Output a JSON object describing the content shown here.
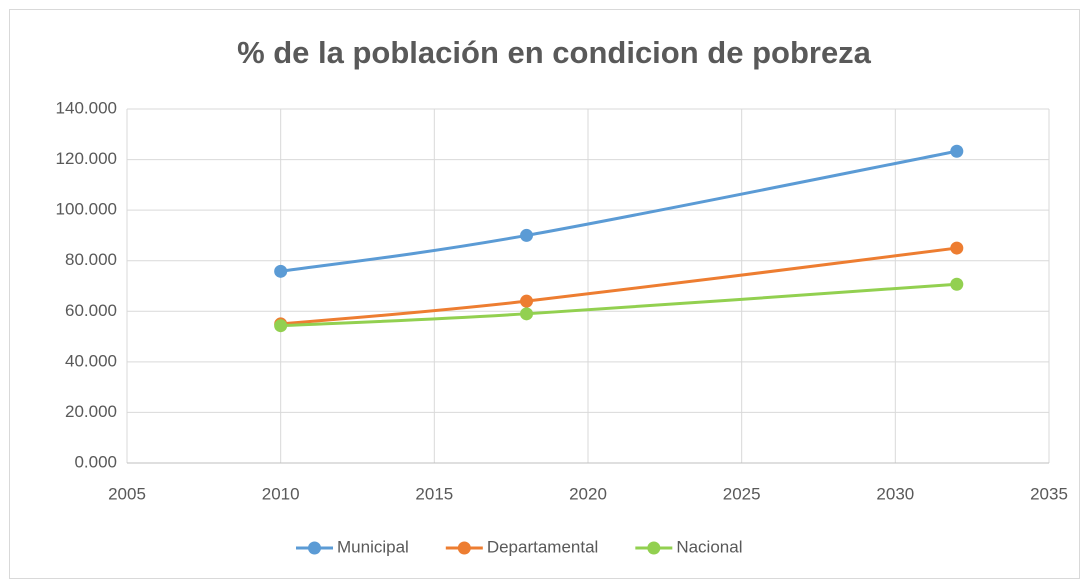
{
  "chart_data": {
    "type": "line",
    "title": "% de la población en condicion de pobreza",
    "x": [
      2010,
      2018,
      2032
    ],
    "series": [
      {
        "name": "Municipal",
        "color": "#5b9bd5",
        "values": [
          75.8,
          90.0,
          123.3
        ]
      },
      {
        "name": "Departamental",
        "color": "#ed7d31",
        "values": [
          55.0,
          64.0,
          85.0
        ]
      },
      {
        "name": "Nacional",
        "color": "#92d050",
        "values": [
          54.3,
          59.0,
          70.7
        ]
      }
    ],
    "xlim": [
      2005,
      2035
    ],
    "xticks": [
      2005,
      2010,
      2015,
      2020,
      2025,
      2030,
      2035
    ],
    "ylim": [
      0,
      140
    ],
    "yticks": [
      {
        "value": 0,
        "label": "0.000"
      },
      {
        "value": 20,
        "label": "20.000"
      },
      {
        "value": 40,
        "label": "40.000"
      },
      {
        "value": 60,
        "label": "60.000"
      },
      {
        "value": 80,
        "label": "80.000"
      },
      {
        "value": 100,
        "label": "100.000"
      },
      {
        "value": 120,
        "label": "120.000"
      },
      {
        "value": 140,
        "label": "140.000"
      }
    ],
    "grid": true,
    "smooth": true,
    "legend": "bottom"
  }
}
